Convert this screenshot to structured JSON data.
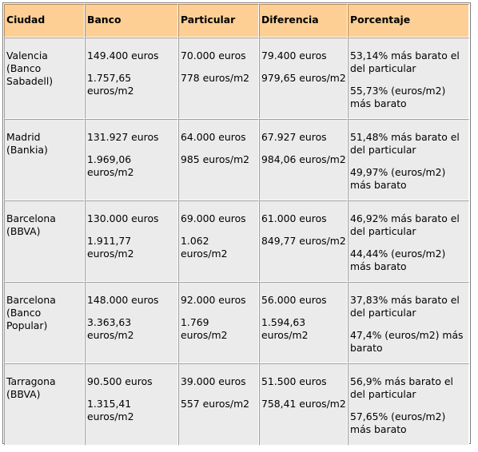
{
  "table": {
    "headers": {
      "ciudad": "Ciudad",
      "banco": "Banco",
      "particular": "Particular",
      "diferencia": "Diferencia",
      "porcentaje": "Porcentaje"
    },
    "rows": [
      {
        "ciudad": "Valencia (Banco Sabadell)",
        "banco": [
          "149.400 euros",
          "1.757,65 euros/m2"
        ],
        "particular": [
          "70.000 euros",
          "778 euros/m2"
        ],
        "diferencia": [
          "79.400 euros",
          "979,65 euros/m2"
        ],
        "porcentaje": [
          "53,14% más barato el del particular",
          "55,73% (euros/m2) más barato"
        ]
      },
      {
        "ciudad": "Madrid (Bankia)",
        "banco": [
          "131.927 euros",
          "1.969,06 euros/m2"
        ],
        "particular": [
          "64.000 euros",
          "985 euros/m2"
        ],
        "diferencia": [
          "67.927 euros",
          "984,06 euros/m2"
        ],
        "porcentaje": [
          "51,48% más barato el del particular",
          "49,97% (euros/m2) más barato"
        ]
      },
      {
        "ciudad": "Barcelona (BBVA)",
        "banco": [
          "130.000 euros",
          "1.911,77 euros/m2"
        ],
        "particular": [
          "69.000 euros",
          "1.062 euros/m2"
        ],
        "diferencia": [
          "61.000 euros",
          "849,77 euros/m2"
        ],
        "porcentaje": [
          "46,92% más barato el del particular",
          "44,44% (euros/m2) más barato"
        ]
      },
      {
        "ciudad": "Barcelona (Banco Popular)",
        "banco": [
          "148.000 euros",
          "3.363,63 euros/m2"
        ],
        "particular": [
          "92.000 euros",
          "1.769 euros/m2"
        ],
        "diferencia": [
          "56.000 euros",
          "1.594,63 euros/m2"
        ],
        "porcentaje": [
          "37,83% más barato el del particular",
          "47,4% (euros/m2) más barato"
        ]
      },
      {
        "ciudad": "Tarragona (BBVA)",
        "banco": [
          "90.500 euros",
          "1.315,41 euros/m2"
        ],
        "particular": [
          "39.000 euros",
          "557 euros/m2"
        ],
        "diferencia": [
          "51.500 euros",
          "758,41 euros/m2"
        ],
        "porcentaje": [
          "56,9% más barato el del particular",
          "57,65% (euros/m2) más barato"
        ]
      }
    ]
  },
  "colors": {
    "header_background": "#fecf94",
    "cell_background": "#ebebeb"
  }
}
